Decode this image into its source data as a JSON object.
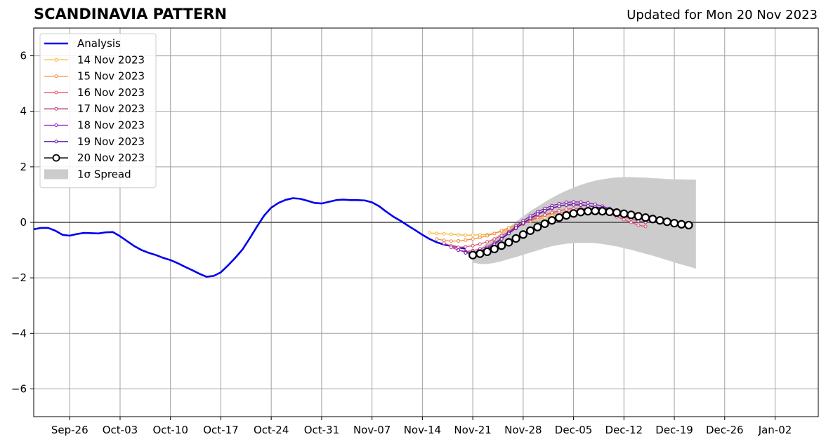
{
  "chart_data": {
    "type": "line",
    "title": "SCANDINAVIA PATTERN",
    "subtitle": "Updated for Mon 20 Nov 2023",
    "xlabel": "",
    "ylabel": "",
    "x_range": [
      "2023-09-21",
      "2024-01-08"
    ],
    "ylim": [
      -7,
      7
    ],
    "grid": true,
    "legend_position": "top-left",
    "x_ticks": [
      "Sep-26",
      "Oct-03",
      "Oct-10",
      "Oct-17",
      "Oct-24",
      "Oct-31",
      "Nov-07",
      "Nov-14",
      "Nov-21",
      "Nov-28",
      "Dec-05",
      "Dec-12",
      "Dec-19",
      "Dec-26",
      "Jan-02"
    ],
    "x_tick_dates": [
      "2023-09-26",
      "2023-10-03",
      "2023-10-10",
      "2023-10-17",
      "2023-10-24",
      "2023-10-31",
      "2023-11-07",
      "2023-11-14",
      "2023-11-21",
      "2023-11-28",
      "2023-12-05",
      "2023-12-12",
      "2023-12-19",
      "2023-12-26",
      "2024-01-02"
    ],
    "y_ticks": [
      -6,
      -4,
      -2,
      0,
      2,
      4,
      6
    ],
    "y_tick_labels": [
      "−6",
      "−4",
      "−2",
      "0",
      "2",
      "4",
      "6"
    ],
    "analysis": {
      "name": "Analysis",
      "color": "#0000ee",
      "start": "2023-09-21",
      "values": [
        -0.25,
        -0.2,
        -0.2,
        -0.3,
        -0.45,
        -0.48,
        -0.42,
        -0.38,
        -0.39,
        -0.4,
        -0.36,
        -0.35,
        -0.5,
        -0.68,
        -0.86,
        -1.0,
        -1.1,
        -1.18,
        -1.28,
        -1.36,
        -1.47,
        -1.6,
        -1.72,
        -1.85,
        -1.96,
        -1.93,
        -1.8,
        -1.55,
        -1.28,
        -0.98,
        -0.58,
        -0.16,
        0.24,
        0.53,
        0.7,
        0.81,
        0.87,
        0.85,
        0.78,
        0.7,
        0.68,
        0.74,
        0.8,
        0.82,
        0.8,
        0.8,
        0.79,
        0.72,
        0.58,
        0.38,
        0.2,
        0.05,
        -0.12,
        -0.28,
        -0.45,
        -0.6,
        -0.72,
        -0.8,
        -0.85,
        -0.9,
        -0.95
      ]
    },
    "forecasts": [
      {
        "name": "14 Nov 2023",
        "color": "#f6b93b",
        "start": "2023-11-15",
        "values": [
          -0.38,
          -0.4,
          -0.41,
          -0.43,
          -0.45,
          -0.46,
          -0.46,
          -0.45,
          -0.44,
          -0.4,
          -0.33,
          -0.24,
          -0.14,
          -0.05,
          0.04,
          0.11,
          0.17,
          0.22,
          0.27,
          0.3,
          0.32,
          0.34,
          0.34,
          0.35,
          0.35,
          0.35,
          0.33,
          0.31,
          0.26,
          0.2
        ]
      },
      {
        "name": "15 Nov 2023",
        "color": "#f28a3e",
        "start": "2023-11-16",
        "values": [
          -0.6,
          -0.65,
          -0.68,
          -0.67,
          -0.64,
          -0.6,
          -0.55,
          -0.48,
          -0.4,
          -0.3,
          -0.2,
          -0.1,
          0.0,
          0.1,
          0.18,
          0.25,
          0.31,
          0.35,
          0.38,
          0.4,
          0.4,
          0.4,
          0.39,
          0.37,
          0.35,
          0.32,
          0.27,
          0.2,
          0.12
        ]
      },
      {
        "name": "16 Nov 2023",
        "color": "#e3516c",
        "start": "2023-11-17",
        "values": [
          -0.75,
          -0.85,
          -0.9,
          -0.88,
          -0.84,
          -0.78,
          -0.7,
          -0.6,
          -0.48,
          -0.34,
          -0.2,
          -0.06,
          0.06,
          0.17,
          0.27,
          0.35,
          0.42,
          0.47,
          0.5,
          0.5,
          0.48,
          0.44,
          0.38,
          0.3,
          0.2,
          0.1,
          0.0,
          -0.1,
          -0.15
        ]
      },
      {
        "name": "17 Nov 2023",
        "color": "#b4398a",
        "start": "2023-11-18",
        "values": [
          -0.9,
          -1.0,
          -1.05,
          -1.02,
          -0.96,
          -0.87,
          -0.74,
          -0.58,
          -0.4,
          -0.22,
          -0.05,
          0.12,
          0.27,
          0.4,
          0.5,
          0.58,
          0.64,
          0.66,
          0.65,
          0.6,
          0.54,
          0.46,
          0.37,
          0.28,
          0.2,
          0.12,
          0.05,
          0.0
        ]
      },
      {
        "name": "18 Nov 2023",
        "color": "#8a1ab5",
        "start": "2023-11-19",
        "values": [
          -1.0,
          -1.07,
          -1.08,
          -1.03,
          -0.93,
          -0.78,
          -0.58,
          -0.36,
          -0.14,
          0.06,
          0.23,
          0.38,
          0.5,
          0.6,
          0.67,
          0.72,
          0.74,
          0.73,
          0.7,
          0.65,
          0.58,
          0.5,
          0.43,
          0.36,
          0.3,
          0.24,
          0.18,
          0.12,
          0.06
        ]
      },
      {
        "name": "19 Nov 2023",
        "color": "#5a1aa0",
        "start": "2023-11-20",
        "values": [
          -1.1,
          -1.13,
          -1.08,
          -0.97,
          -0.8,
          -0.6,
          -0.4,
          -0.2,
          -0.02,
          0.15,
          0.3,
          0.42,
          0.52,
          0.58,
          0.62,
          0.63,
          0.62,
          0.6,
          0.56,
          0.52,
          0.47,
          0.42,
          0.37,
          0.32,
          0.28,
          0.23,
          0.18,
          0.14,
          0.1
        ]
      },
      {
        "name": "20 Nov 2023",
        "color": "#000000",
        "start": "2023-11-21",
        "values": [
          -1.18,
          -1.13,
          -1.06,
          -0.96,
          -0.84,
          -0.72,
          -0.58,
          -0.44,
          -0.3,
          -0.17,
          -0.05,
          0.07,
          0.17,
          0.25,
          0.32,
          0.37,
          0.4,
          0.41,
          0.4,
          0.38,
          0.35,
          0.31,
          0.27,
          0.22,
          0.17,
          0.12,
          0.07,
          0.02,
          -0.03,
          -0.07,
          -0.1
        ]
      }
    ],
    "spread": {
      "name": "1σ Spread",
      "color": "#cccccc",
      "start": "2023-11-21",
      "upper": [
        -1.1,
        -0.95,
        -0.74,
        -0.56,
        -0.38,
        -0.18,
        0.02,
        0.22,
        0.4,
        0.57,
        0.73,
        0.88,
        1.02,
        1.14,
        1.25,
        1.35,
        1.43,
        1.5,
        1.55,
        1.59,
        1.62,
        1.63,
        1.63,
        1.62,
        1.61,
        1.59,
        1.58,
        1.56,
        1.55,
        1.55,
        1.54,
        1.54
      ],
      "lower": [
        -1.45,
        -1.5,
        -1.5,
        -1.46,
        -1.4,
        -1.32,
        -1.25,
        -1.17,
        -1.09,
        -1.01,
        -0.93,
        -0.86,
        -0.81,
        -0.77,
        -0.75,
        -0.74,
        -0.74,
        -0.75,
        -0.78,
        -0.82,
        -0.87,
        -0.93,
        -0.99,
        -1.06,
        -1.13,
        -1.2,
        -1.28,
        -1.36,
        -1.44,
        -1.52,
        -1.59,
        -1.67
      ]
    }
  }
}
